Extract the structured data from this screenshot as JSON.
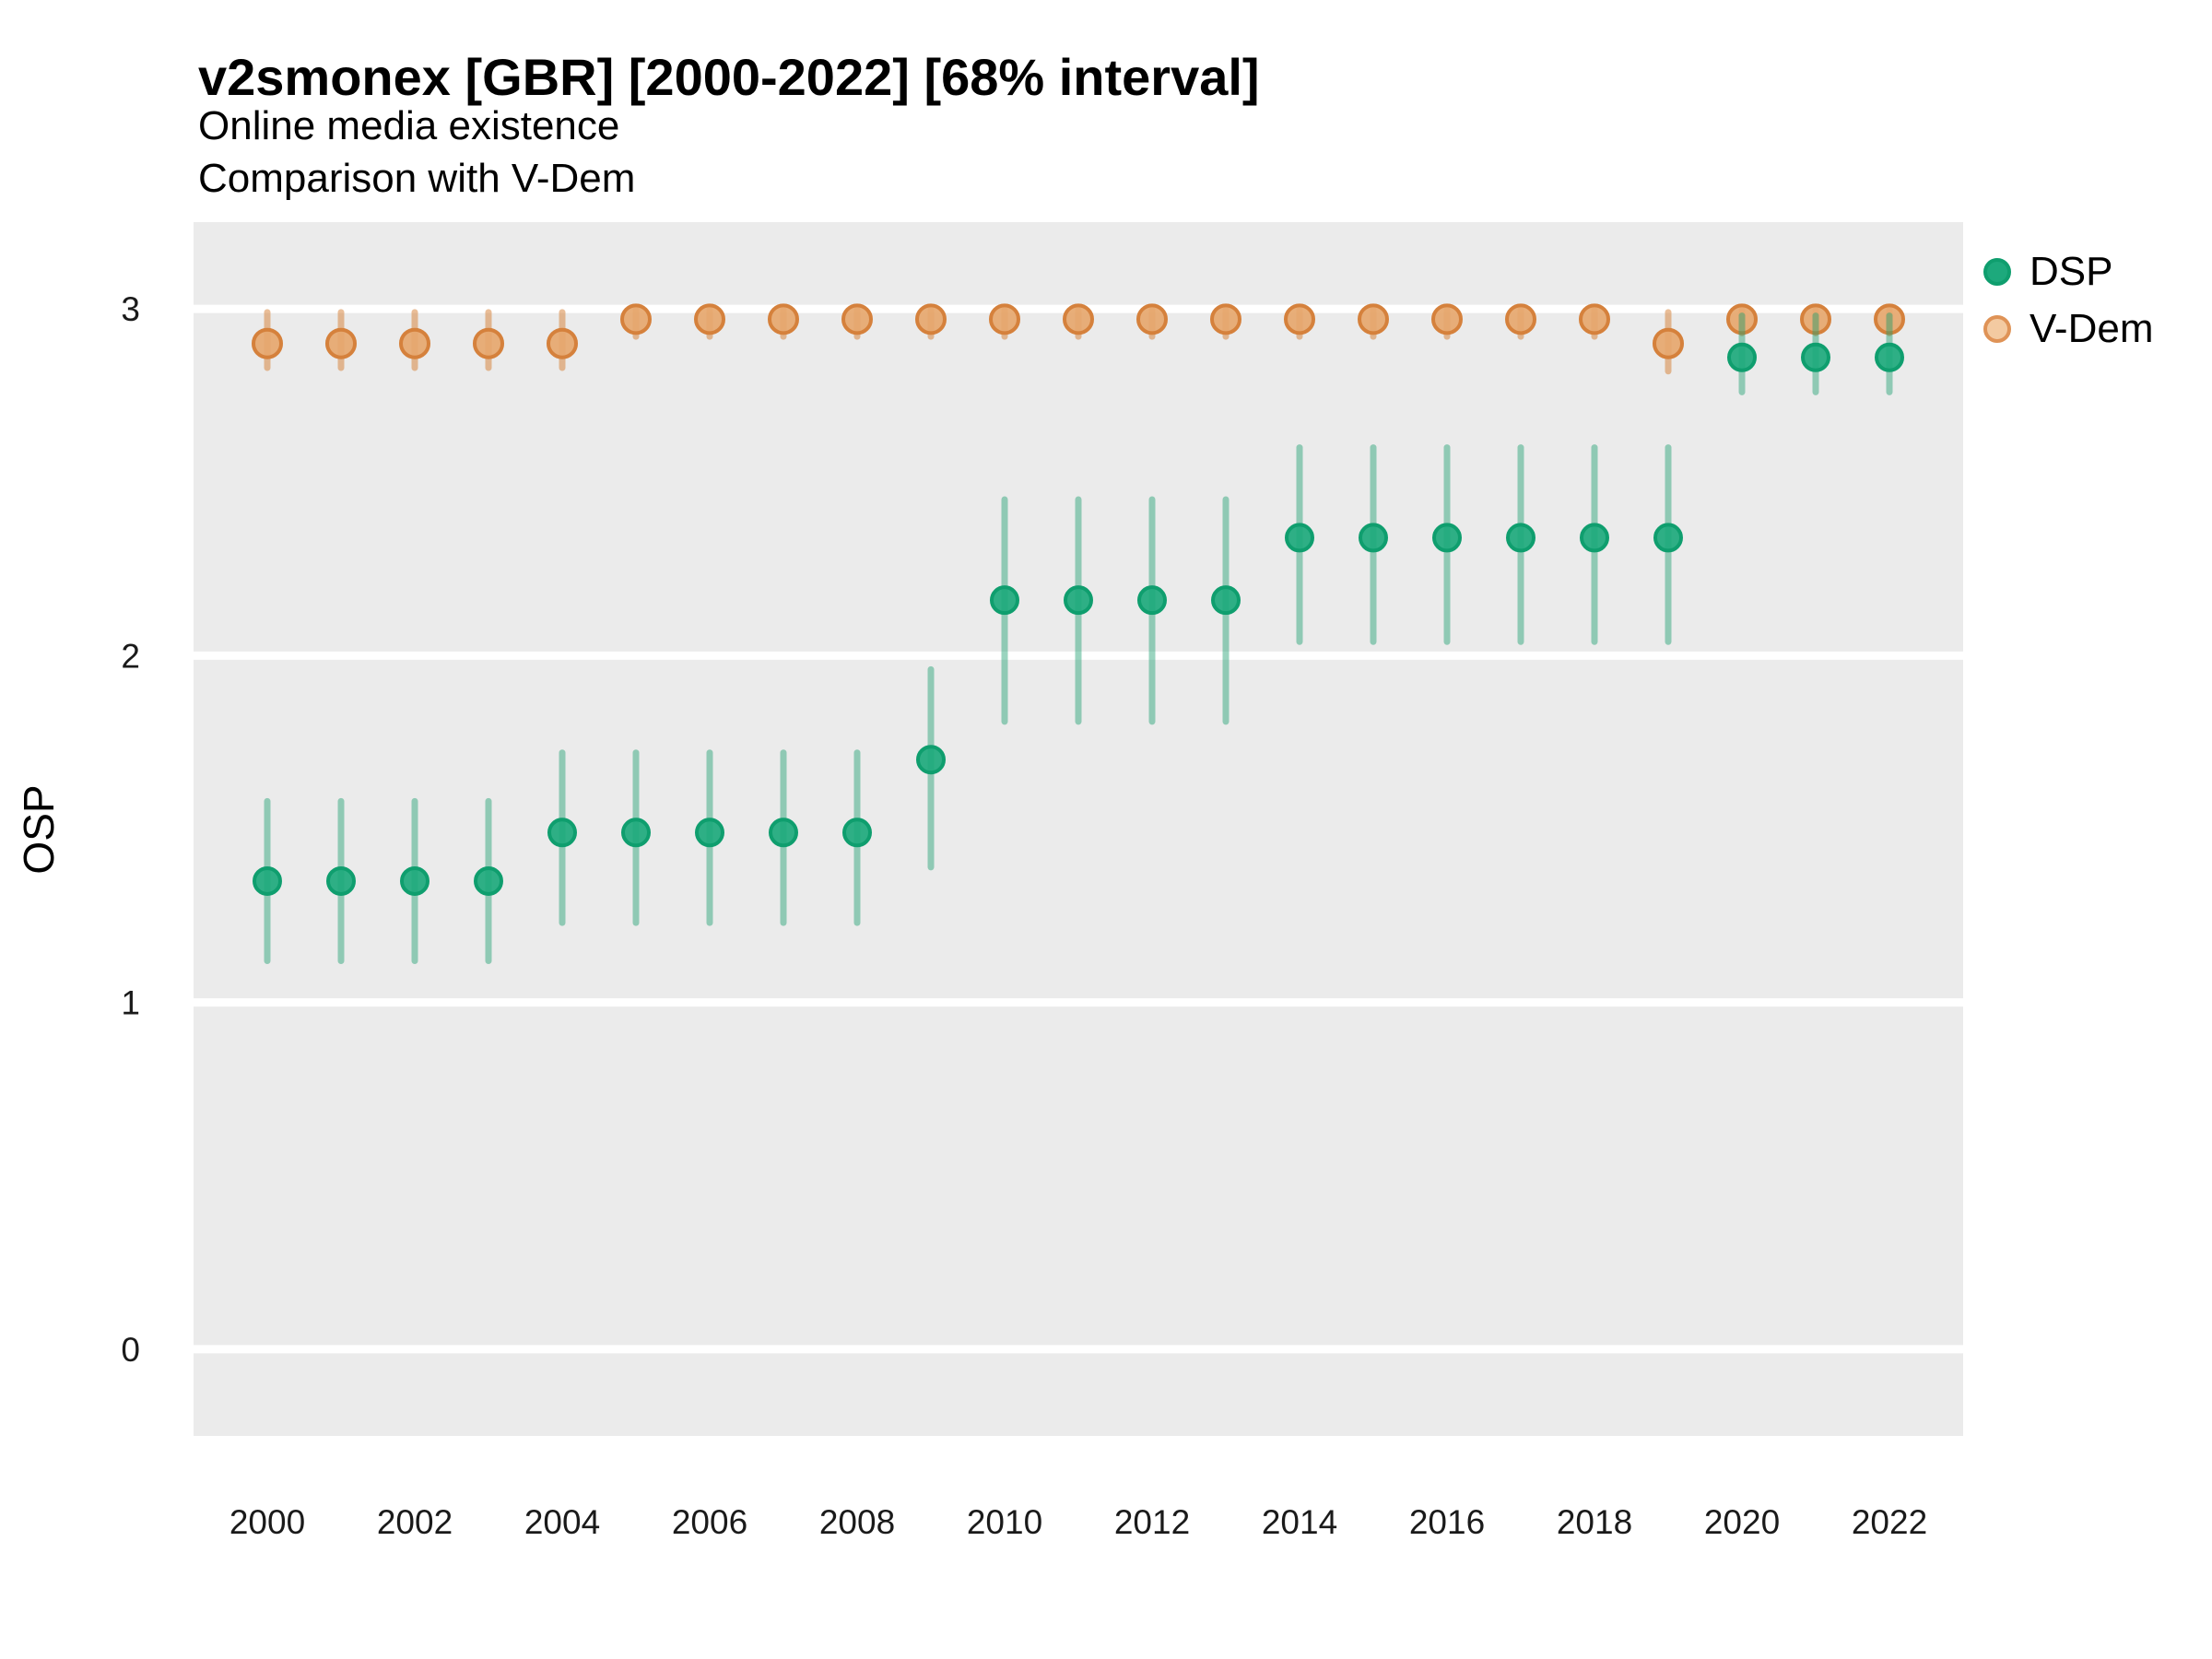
{
  "header": {
    "title": "v2smonex [GBR] [2000-2022] [68% interval]",
    "subtitle1": "Online media existence",
    "subtitle2": "Comparison with V-Dem"
  },
  "legend": {
    "position": "right",
    "items": [
      {
        "label": "DSP",
        "key": "dsp"
      },
      {
        "label": "V-Dem",
        "key": "vdem"
      }
    ]
  },
  "axes": {
    "y_label": "OSP",
    "y_tick_labels": [
      "0",
      "1",
      "2",
      "3"
    ],
    "x_tick_labels": [
      "2000",
      "2002",
      "2004",
      "2006",
      "2008",
      "2010",
      "2012",
      "2014",
      "2016",
      "2018",
      "2020",
      "2022"
    ]
  },
  "colors": {
    "panel_bg": "#ebebeb",
    "grid": "#ffffff",
    "tick_text": "#1a1a1a",
    "dsp_fill": "#1da97c",
    "dsp_stroke": "#0f9e6e",
    "dsp_bar": "rgba(30,160,112,0.45)",
    "vdem_fill": "#e6a76e",
    "vdem_stroke": "#d5813c",
    "vdem_bar": "rgba(214,125,50,0.5)",
    "legend_dsp_fill": "#1da97c",
    "legend_dsp_stroke": "#0f9e6e",
    "legend_vdem_fill": "#f3caa1",
    "legend_vdem_stroke": "#df9357"
  },
  "chart_data": {
    "type": "scatter",
    "title": "v2smonex [GBR] [2000-2022] [68% interval]",
    "subtitle": [
      "Online media existence",
      "Comparison with V-Dem"
    ],
    "xlabel": "",
    "ylabel": "OSP",
    "interval": "68%",
    "ylim": [
      -0.25,
      3.25
    ],
    "y_ticks": [
      0,
      1,
      2,
      3
    ],
    "x_ticks": [
      2000,
      2002,
      2004,
      2006,
      2008,
      2010,
      2012,
      2014,
      2016,
      2018,
      2020,
      2022
    ],
    "x": [
      2000,
      2001,
      2002,
      2003,
      2004,
      2005,
      2006,
      2007,
      2008,
      2009,
      2010,
      2011,
      2012,
      2013,
      2014,
      2015,
      2016,
      2017,
      2018,
      2019,
      2020,
      2021,
      2022
    ],
    "grid": "horizontal-major-only",
    "legend_position": "right",
    "series": [
      {
        "name": "DSP",
        "key": "dsp",
        "values": [
          1.35,
          1.35,
          1.35,
          1.35,
          1.49,
          1.49,
          1.49,
          1.49,
          1.49,
          1.7,
          2.16,
          2.16,
          2.16,
          2.16,
          2.34,
          2.34,
          2.34,
          2.34,
          2.34,
          2.34,
          2.86,
          2.86,
          2.86
        ],
        "lower": [
          1.12,
          1.12,
          1.12,
          1.12,
          1.23,
          1.23,
          1.23,
          1.23,
          1.23,
          1.39,
          1.81,
          1.81,
          1.81,
          1.81,
          2.04,
          2.04,
          2.04,
          2.04,
          2.04,
          2.04,
          2.76,
          2.76,
          2.76
        ],
        "upper": [
          1.58,
          1.58,
          1.58,
          1.58,
          1.72,
          1.72,
          1.72,
          1.72,
          1.72,
          1.96,
          2.45,
          2.45,
          2.45,
          2.45,
          2.6,
          2.6,
          2.6,
          2.6,
          2.6,
          2.6,
          2.98,
          2.98,
          2.98
        ]
      },
      {
        "name": "V-Dem",
        "key": "vdem",
        "values": [
          2.9,
          2.9,
          2.9,
          2.9,
          2.9,
          2.97,
          2.97,
          2.97,
          2.97,
          2.97,
          2.97,
          2.97,
          2.97,
          2.97,
          2.97,
          2.97,
          2.97,
          2.97,
          2.97,
          2.9,
          2.97,
          2.97,
          2.97
        ],
        "lower": [
          2.83,
          2.83,
          2.83,
          2.83,
          2.83,
          2.92,
          2.92,
          2.92,
          2.92,
          2.92,
          2.92,
          2.92,
          2.92,
          2.92,
          2.92,
          2.92,
          2.92,
          2.92,
          2.92,
          2.82,
          2.93,
          2.93,
          2.93
        ],
        "upper": [
          2.99,
          2.99,
          2.99,
          2.99,
          2.99,
          3.0,
          3.0,
          3.0,
          3.0,
          3.0,
          3.0,
          3.0,
          3.0,
          3.0,
          3.0,
          3.0,
          3.0,
          3.0,
          3.0,
          2.99,
          3.0,
          3.0,
          3.0
        ]
      }
    ]
  }
}
